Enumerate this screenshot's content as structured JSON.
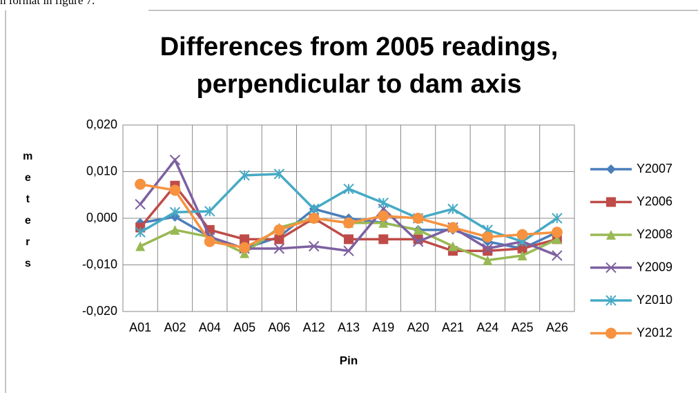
{
  "document_text": "n format in figure 7.",
  "chart_data": {
    "type": "line",
    "title": [
      "Differences from 2005 readings,",
      "perpendicular to dam axis"
    ],
    "x_label": "Pin",
    "y_label": "meters",
    "categories": [
      "A01",
      "A02",
      "A04",
      "A05",
      "A06",
      "A12",
      "A13",
      "A19",
      "A20",
      "A21",
      "A24",
      "A25",
      "A26"
    ],
    "ylim": [
      -0.02,
      0.02
    ],
    "yticks": [
      {
        "value": -0.02,
        "label": "-0,020"
      },
      {
        "value": -0.01,
        "label": "-0,010"
      },
      {
        "value": 0,
        "label": "0,000"
      },
      {
        "value": 0.01,
        "label": "0,010"
      },
      {
        "value": 0.02,
        "label": "0,020"
      }
    ],
    "grid": true,
    "legend": "right",
    "series": [
      {
        "name": "Y2007",
        "color": "#4a7ebb",
        "marker": "diamond",
        "values": [
          -0.001,
          0.0003,
          -0.004,
          -0.0065,
          -0.004,
          0.002,
          0.0,
          -0.001,
          -0.0025,
          -0.0025,
          -0.005,
          -0.0065,
          -0.003
        ]
      },
      {
        "name": "Y2006",
        "color": "#be4b48",
        "marker": "square",
        "values": [
          -0.002,
          0.007,
          -0.0025,
          -0.0045,
          -0.0045,
          0.0,
          -0.0045,
          -0.0045,
          -0.0045,
          -0.007,
          -0.007,
          -0.0065,
          -0.0045
        ]
      },
      {
        "name": "Y2008",
        "color": "#98b954",
        "marker": "triangle",
        "values": [
          -0.006,
          -0.0025,
          -0.004,
          -0.0075,
          -0.002,
          0.0,
          -0.001,
          -0.001,
          -0.0025,
          -0.006,
          -0.009,
          -0.008,
          -0.0045
        ]
      },
      {
        "name": "Y2009",
        "color": "#7d60a0",
        "marker": "x",
        "values": [
          0.003,
          0.0125,
          -0.004,
          -0.0065,
          -0.0065,
          -0.006,
          -0.007,
          0.002,
          -0.005,
          -0.002,
          -0.0065,
          -0.005,
          -0.008
        ]
      },
      {
        "name": "Y2010",
        "color": "#46aac5",
        "marker": "star",
        "values": [
          -0.003,
          0.0013,
          0.0015,
          0.0092,
          0.0095,
          0.002,
          0.0063,
          0.0033,
          0.0,
          0.002,
          -0.0025,
          -0.005,
          0.0
        ]
      },
      {
        "name": "Y2012",
        "color": "#f69240",
        "marker": "circle",
        "values": [
          0.0073,
          0.006,
          -0.005,
          -0.0063,
          -0.0025,
          0.0,
          -0.001,
          0.0005,
          0.0,
          -0.002,
          -0.004,
          -0.0035,
          -0.003
        ]
      }
    ]
  }
}
